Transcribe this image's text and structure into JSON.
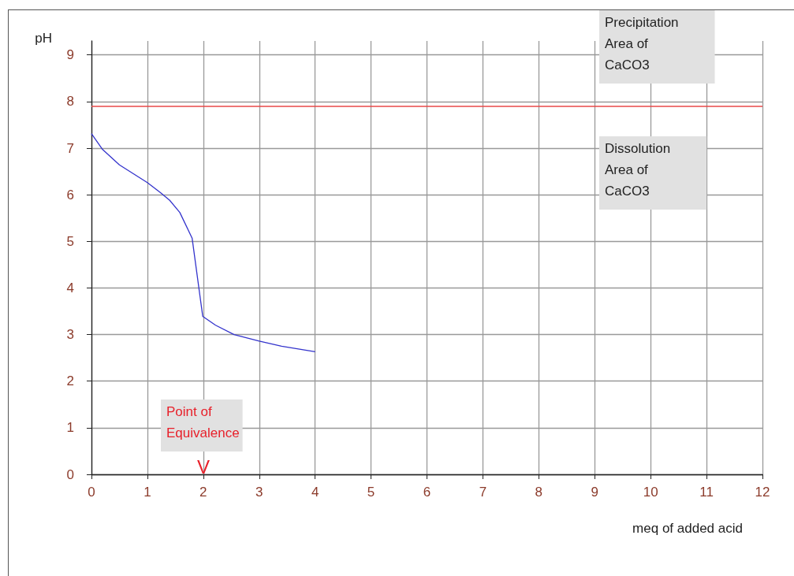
{
  "chart_data": {
    "type": "line",
    "ylabel": "pH",
    "xlabel": "meq of added acid",
    "x": [
      0,
      0.2,
      0.5,
      1.0,
      1.23,
      1.4,
      1.58,
      1.8,
      1.99,
      2.22,
      2.55,
      3.0,
      3.4,
      4.0
    ],
    "series": [
      {
        "color": "#3333cc",
        "values": [
          7.31,
          6.97,
          6.64,
          6.26,
          6.05,
          5.88,
          5.62,
          5.07,
          3.39,
          3.2,
          3.0,
          2.86,
          2.75,
          2.63
        ]
      }
    ],
    "xlim": [
      0,
      12
    ],
    "xticks": [
      0,
      1,
      2,
      3,
      4,
      5,
      6,
      7,
      8,
      9,
      10,
      11,
      12
    ],
    "ylim": [
      0,
      9.3
    ],
    "yticks": [
      0,
      1,
      2,
      3,
      4,
      5,
      6,
      7,
      8,
      9
    ],
    "grid": true,
    "marker": "none",
    "line_style": "solid",
    "ref_lines": [
      {
        "axis": "y",
        "value": 7.9,
        "color": "#e84848"
      }
    ],
    "annotations": [
      "Precipitation\nArea of\nCaCO3",
      "Dissolution\nArea of\nCaCO3",
      "Point of\nEquivalence",
      "V"
    ]
  }
}
